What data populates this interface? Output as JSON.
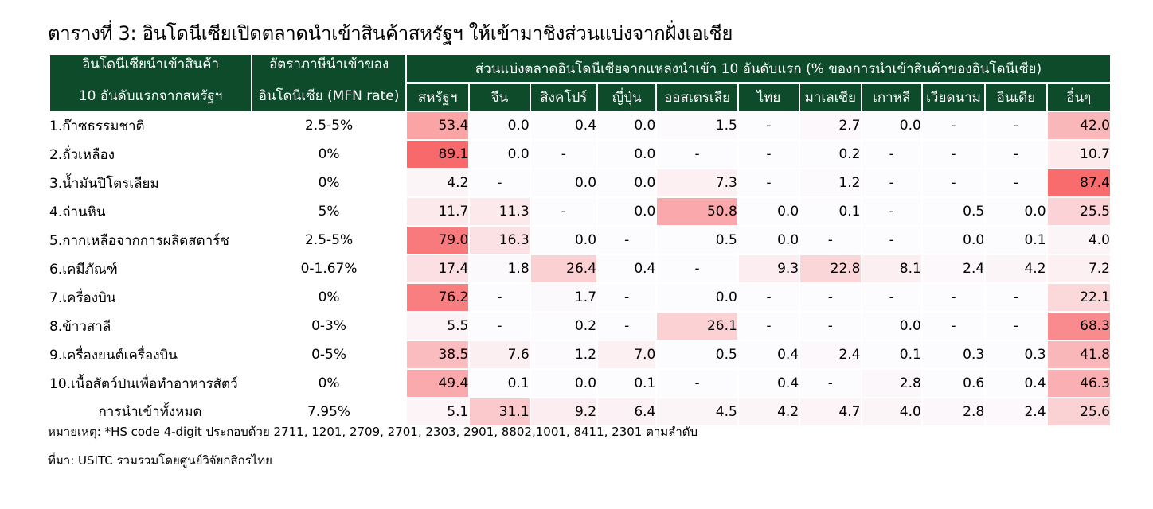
{
  "title": "ตารางที่ 3: อินโดนีเซียเปิดตลาดนำเข้าสินค้าสหรัฐฯ ให้เข้ามาชิงส่วนแบ่งจากฝั่งเอเชีย",
  "header": {
    "col1_line1": "อินโดนีเซียนำเข้าสินค้า",
    "col1_line2": "10 อันดับแรกจากสหรัฐฯ",
    "col2_line1": "อัตราภาษีนำเข้าของ",
    "col2_line2": "อินโดนีเซีย (MFN rate)",
    "group": "ส่วนแบ่งตลาดอินโดนีเซียจากแหล่งนำเข้า 10 อันดับแรก (% ของการนำเข้าสินค้าของอินโดนีเซีย)",
    "sources": [
      "สหรัฐฯ",
      "จีน",
      "สิงคโปร์",
      "ญี่ปุ่น",
      "ออสเตรเลีย",
      "ไทย",
      "มาเลเซีย",
      "เกาหลี",
      "เวียดนาม",
      "อินเดีย",
      "อื่นๆ"
    ]
  },
  "rows": [
    {
      "name": "1.ก๊าซธรรมชาติ",
      "rate": "2.5-5%",
      "values": [
        "53.4",
        "0.0",
        "0.4",
        "0.0",
        "1.5",
        "-",
        "2.7",
        "0.0",
        "-",
        "-",
        "42.0"
      ]
    },
    {
      "name": "2.ถั่วเหลือง",
      "rate": "0%",
      "values": [
        "89.1",
        "0.0",
        "-",
        "0.0",
        "-",
        "-",
        "0.2",
        "-",
        "-",
        "-",
        "10.7"
      ]
    },
    {
      "name": "3.น้ำมันปิโตรเลียม",
      "rate": "0%",
      "values": [
        "4.2",
        "-",
        "0.0",
        "0.0",
        "7.3",
        "-",
        "1.2",
        "-",
        "-",
        "-",
        "87.4"
      ]
    },
    {
      "name": "4.ถ่านหิน",
      "rate": "5%",
      "values": [
        "11.7",
        "11.3",
        "-",
        "0.0",
        "50.8",
        "0.0",
        "0.1",
        "-",
        "0.5",
        "0.0",
        "25.5"
      ]
    },
    {
      "name": "5.กากเหลือจากการผลิตสตาร์ช",
      "rate": "2.5-5%",
      "values": [
        "79.0",
        "16.3",
        "0.0",
        "-",
        "0.5",
        "0.0",
        "-",
        "-",
        "0.0",
        "0.1",
        "4.0"
      ]
    },
    {
      "name": "6.เคมีภัณฑ์",
      "rate": "0-1.67%",
      "values": [
        "17.4",
        "1.8",
        "26.4",
        "0.4",
        "-",
        "9.3",
        "22.8",
        "8.1",
        "2.4",
        "4.2",
        "7.2"
      ]
    },
    {
      "name": "7.เครื่องบิน",
      "rate": "0%",
      "values": [
        "76.2",
        "-",
        "1.7",
        "-",
        "0.0",
        "-",
        "-",
        "-",
        "-",
        "-",
        "22.1"
      ]
    },
    {
      "name": "8.ข้าวสาลี",
      "rate": "0-3%",
      "values": [
        "5.5",
        "-",
        "0.2",
        "-",
        "26.1",
        "-",
        "-",
        "0.0",
        "-",
        "-",
        "68.3"
      ]
    },
    {
      "name": "9.เครื่องยนต์เครื่องบิน",
      "rate": "0-5%",
      "values": [
        "38.5",
        "7.6",
        "1.2",
        "7.0",
        "0.5",
        "0.4",
        "2.4",
        "0.1",
        "0.3",
        "0.3",
        "41.8"
      ]
    },
    {
      "name": "10.เนื้อสัตว์ป่นเพื่อทำอาหารสัตว์",
      "rate": "0%",
      "values": [
        "49.4",
        "0.1",
        "0.0",
        "0.1",
        "-",
        "0.4",
        "-",
        "2.8",
        "0.6",
        "0.4",
        "46.3"
      ]
    }
  ],
  "total": {
    "name": "การนำเข้าทั้งหมด",
    "rate": "7.95%",
    "values": [
      "5.1",
      "31.1",
      "9.2",
      "6.4",
      "4.5",
      "4.2",
      "4.7",
      "4.0",
      "2.8",
      "2.4",
      "25.6"
    ]
  },
  "note": "หมายเหตุ: *HS code 4-digit ประกอบด้วย 2711, 1201, 2709, 2701, 2303, 2901, 8802,1001, 8411, 2301 ตามลำดับ",
  "source": "ที่มา: USITC รวมรวมโดยศูนย์วิจัยกสิกรไทย",
  "colors": {
    "header_bg": "#0e4b2b",
    "heat_high": "#f8696b",
    "heat_low": "#fcfcff"
  }
}
